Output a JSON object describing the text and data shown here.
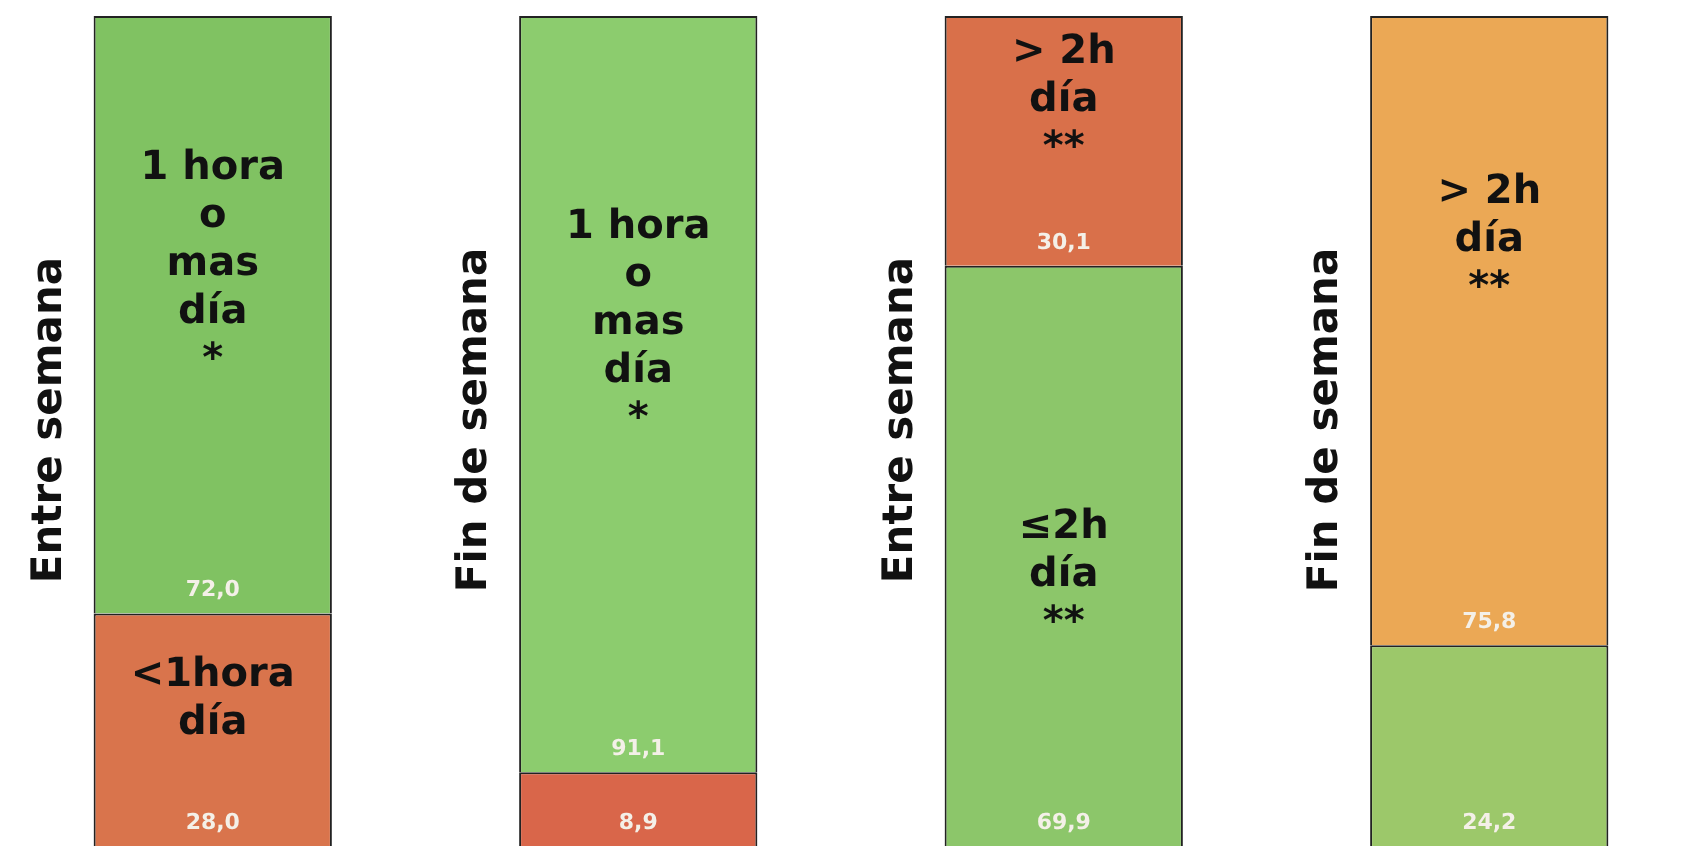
{
  "chart_data": {
    "type": "bar",
    "stacked": true,
    "categories": [
      "Entre semana",
      "Fin de semana",
      "Entre semana",
      "Fin de semana"
    ],
    "series": [
      {
        "colors": [
          "#d9744c",
          "#d9664a",
          "#8cc66a",
          "#9cc86a"
        ],
        "values": [
          28.0,
          8.9,
          69.9,
          24.2
        ],
        "value_labels": [
          "28,0",
          "8,9",
          "69,9",
          "24,2"
        ]
      },
      {
        "colors": [
          "#80c262",
          "#8ccc6e",
          "#d9704a",
          "#eba855"
        ],
        "values": [
          72.0,
          91.1,
          30.1,
          75.8
        ],
        "value_labels": [
          "72,0",
          "91,1",
          "30,1",
          "75,8"
        ]
      }
    ],
    "annotations": [
      "1 hora\no\nmas\ndía\n*",
      "<1hora\ndía",
      "1 hora\no\nmas\ndía\n*",
      "> 2h\ndía\n**",
      "≤2h\ndía\n**",
      "> 2h\ndía\n**"
    ]
  }
}
